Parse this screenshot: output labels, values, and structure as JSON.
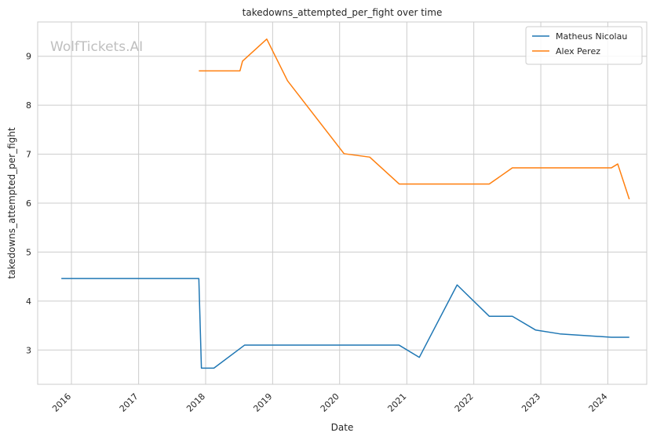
{
  "chart_data": {
    "type": "line",
    "title": "takedowns_attempted_per_fight over time",
    "xlabel": "Date",
    "ylabel": "takedowns_attempted_per_fight",
    "watermark": "WolfTickets.AI",
    "xlim": [
      "2015-07-01",
      "2024-07-31"
    ],
    "ylim": [
      2.3,
      9.7
    ],
    "x_ticks": [
      "2016",
      "2017",
      "2018",
      "2019",
      "2020",
      "2021",
      "2022",
      "2023",
      "2024"
    ],
    "y_ticks": [
      3,
      4,
      5,
      6,
      7,
      8,
      9
    ],
    "grid": true,
    "legend_position": "top-right",
    "series": [
      {
        "name": "Matheus Nicolau",
        "color": "#1f77b4",
        "points": [
          [
            "2015-11-07",
            4.46
          ],
          [
            "2017-11-25",
            4.46
          ],
          [
            "2017-12-09",
            2.63
          ],
          [
            "2018-02-15",
            2.63
          ],
          [
            "2018-08-01",
            3.1
          ],
          [
            "2020-11-20",
            3.1
          ],
          [
            "2021-03-10",
            2.85
          ],
          [
            "2021-10-02",
            4.33
          ],
          [
            "2022-03-26",
            3.69
          ],
          [
            "2022-07-30",
            3.69
          ],
          [
            "2022-12-03",
            3.41
          ],
          [
            "2023-04-15",
            3.33
          ],
          [
            "2024-01-20",
            3.26
          ],
          [
            "2024-04-27",
            3.26
          ]
        ]
      },
      {
        "name": "Alex Perez",
        "color": "#ff7f0e",
        "points": [
          [
            "2017-11-25",
            8.7
          ],
          [
            "2018-07-07",
            8.7
          ],
          [
            "2018-07-21",
            8.9
          ],
          [
            "2018-11-30",
            9.35
          ],
          [
            "2019-03-23",
            8.5
          ],
          [
            "2020-01-25",
            7.01
          ],
          [
            "2020-06-13",
            6.94
          ],
          [
            "2020-11-21",
            6.39
          ],
          [
            "2022-03-26",
            6.39
          ],
          [
            "2022-07-30",
            6.72
          ],
          [
            "2024-01-20",
            6.72
          ],
          [
            "2024-02-24",
            6.8
          ],
          [
            "2024-04-27",
            6.08
          ]
        ]
      }
    ]
  }
}
